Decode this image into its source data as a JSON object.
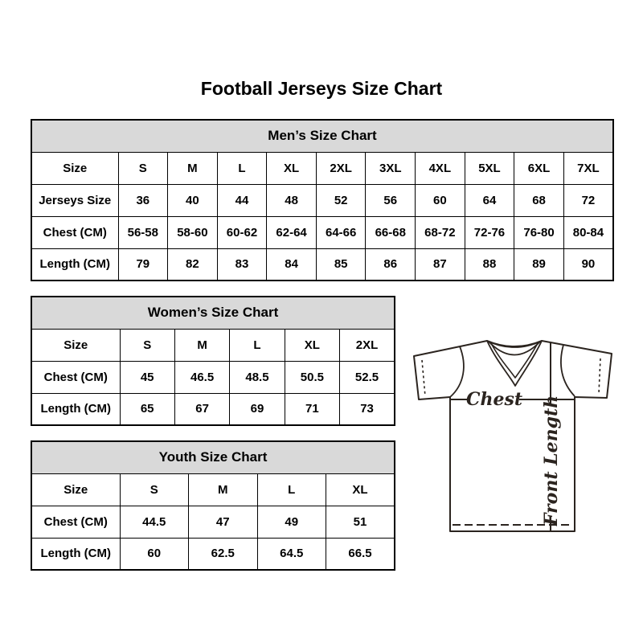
{
  "page_title": "Football Jerseys Size Chart",
  "tables": {
    "men": {
      "title": "Men’s Size Chart",
      "size_row_label": "Size",
      "sizes": [
        "S",
        "M",
        "L",
        "XL",
        "2XL",
        "3XL",
        "4XL",
        "5XL",
        "6XL",
        "7XL"
      ],
      "rows": [
        {
          "label": "Jerseys Size",
          "values": [
            "36",
            "40",
            "44",
            "48",
            "52",
            "56",
            "60",
            "64",
            "68",
            "72"
          ]
        },
        {
          "label": "Chest (CM)",
          "values": [
            "56-58",
            "58-60",
            "60-62",
            "62-64",
            "64-66",
            "66-68",
            "68-72",
            "72-76",
            "76-80",
            "80-84"
          ]
        },
        {
          "label": "Length (CM)",
          "values": [
            "79",
            "82",
            "83",
            "84",
            "85",
            "86",
            "87",
            "88",
            "89",
            "90"
          ]
        }
      ]
    },
    "women": {
      "title": "Women’s Size Chart",
      "size_row_label": "Size",
      "sizes": [
        "S",
        "M",
        "L",
        "XL",
        "2XL"
      ],
      "rows": [
        {
          "label": "Chest (CM)",
          "values": [
            "45",
            "46.5",
            "48.5",
            "50.5",
            "52.5"
          ]
        },
        {
          "label": "Length (CM)",
          "values": [
            "65",
            "67",
            "69",
            "71",
            "73"
          ]
        }
      ]
    },
    "youth": {
      "title": "Youth Size Chart",
      "size_row_label": "Size",
      "sizes": [
        "S",
        "M",
        "L",
        "XL"
      ],
      "rows": [
        {
          "label": "Chest (CM)",
          "values": [
            "44.5",
            "47",
            "49",
            "51"
          ]
        },
        {
          "label": "Length (CM)",
          "values": [
            "60",
            "62.5",
            "64.5",
            "66.5"
          ]
        }
      ]
    }
  },
  "diagram": {
    "chest_label": "Chest",
    "front_length_label": "Front Length"
  },
  "colors": {
    "table_header_bg": "#d9d9d9",
    "table_border": "#000000",
    "text": "#000000",
    "jersey_outline": "#2b241f",
    "background": "#ffffff"
  }
}
